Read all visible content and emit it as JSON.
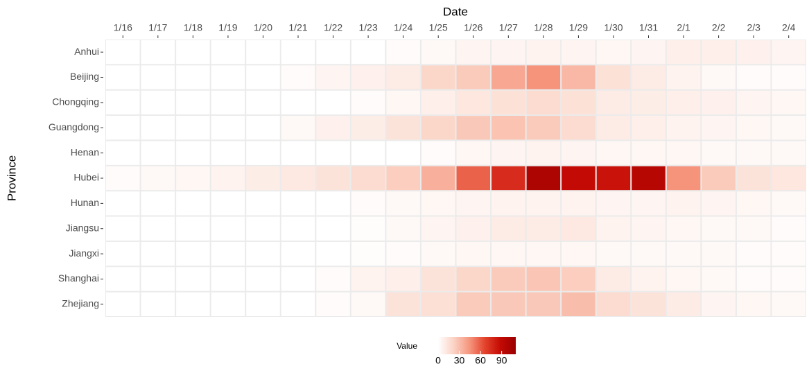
{
  "chart_data": {
    "type": "heatmap",
    "x_label": "Date",
    "y_label": "Province",
    "x": [
      "1/16",
      "1/17",
      "1/18",
      "1/19",
      "1/20",
      "1/21",
      "1/22",
      "1/23",
      "1/24",
      "1/25",
      "1/26",
      "1/27",
      "1/28",
      "1/29",
      "1/30",
      "1/31",
      "2/1",
      "2/2",
      "2/3",
      "2/4"
    ],
    "y": [
      "Anhui",
      "Beijing",
      "Chongqing",
      "Guangdong",
      "Henan",
      "Hubei",
      "Hunan",
      "Jiangsu",
      "Jiangxi",
      "Shanghai",
      "Zhejiang"
    ],
    "z": [
      [
        0,
        0,
        0,
        0,
        0,
        0,
        0,
        0,
        2,
        3,
        5,
        5,
        6,
        5,
        4,
        5,
        8,
        8,
        7,
        5
      ],
      [
        0,
        0,
        0,
        0,
        0,
        2,
        5,
        7,
        10,
        20,
        25,
        38,
        45,
        32,
        15,
        10,
        6,
        3,
        2,
        2
      ],
      [
        0,
        0,
        0,
        0,
        0,
        0,
        0,
        2,
        4,
        8,
        12,
        15,
        18,
        15,
        10,
        9,
        8,
        7,
        5,
        4
      ],
      [
        0,
        0,
        0,
        0,
        0,
        3,
        7,
        9,
        14,
        20,
        26,
        28,
        25,
        18,
        10,
        8,
        6,
        5,
        4,
        3
      ],
      [
        0,
        0,
        0,
        0,
        0,
        0,
        0,
        0,
        0,
        2,
        4,
        5,
        6,
        5,
        4,
        4,
        4,
        3,
        3,
        3
      ],
      [
        2,
        3,
        4,
        6,
        9,
        11,
        14,
        18,
        24,
        35,
        58,
        75,
        100,
        88,
        85,
        95,
        45,
        25,
        14,
        12
      ],
      [
        0,
        0,
        0,
        0,
        0,
        0,
        0,
        2,
        3,
        4,
        5,
        6,
        6,
        6,
        5,
        5,
        6,
        5,
        4,
        3
      ],
      [
        0,
        0,
        0,
        0,
        0,
        0,
        0,
        1,
        3,
        5,
        7,
        10,
        10,
        11,
        6,
        5,
        4,
        3,
        3,
        2
      ],
      [
        0,
        0,
        0,
        0,
        0,
        0,
        0,
        1,
        2,
        3,
        4,
        4,
        4,
        4,
        3,
        3,
        3,
        3,
        2,
        2
      ],
      [
        0,
        0,
        0,
        0,
        0,
        0,
        2,
        6,
        8,
        14,
        20,
        25,
        27,
        24,
        10,
        6,
        4,
        3,
        2,
        2
      ],
      [
        0,
        0,
        0,
        0,
        0,
        0,
        2,
        3,
        14,
        16,
        25,
        26,
        26,
        30,
        18,
        14,
        10,
        5,
        4,
        3
      ]
    ],
    "colors": [
      "#ffffff",
      "#fbd3c5",
      "#f6977f",
      "#e4442e",
      "#c40a04",
      "#9a0000"
    ],
    "clim": [
      0,
      110
    ],
    "legend_title": "Value",
    "legend_ticks": [
      0,
      30,
      60,
      90
    ]
  }
}
